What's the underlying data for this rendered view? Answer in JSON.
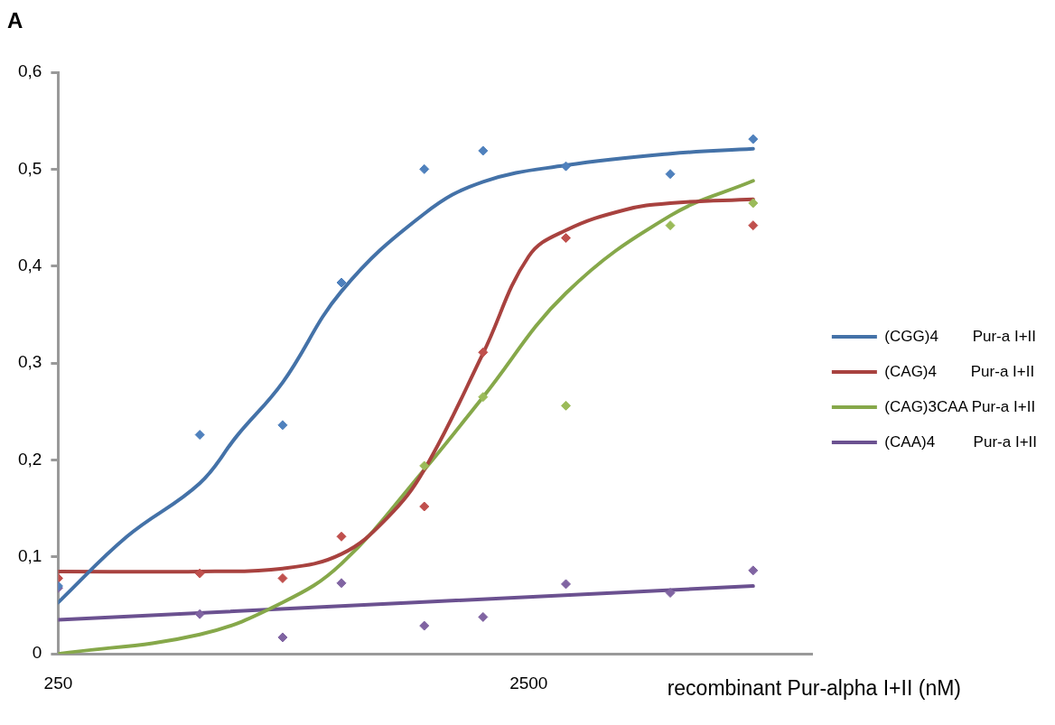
{
  "chart_data": {
    "type": "scatter",
    "xlabel": "recombinant Pur-alpha I+II (nM)",
    "annotations": [
      "A"
    ],
    "log": "x",
    "xlim": [
      250,
      10000
    ],
    "xticks": [
      250,
      2500
    ],
    "ylim": [
      0,
      0.6
    ],
    "yticks": [
      0,
      {
        "value": 0.1,
        "label": "0,1"
      },
      {
        "value": 0.2,
        "label": "0,2"
      },
      {
        "value": 0.3,
        "label": "0,3"
      },
      {
        "value": 0.4,
        "label": "0,4"
      },
      {
        "value": 0.5,
        "label": "0,5"
      },
      {
        "value": 0.6,
        "label": "0,6"
      }
    ],
    "grid": false,
    "legend": "right",
    "marker": "diamond",
    "x": [
      250,
      500,
      750,
      1000,
      1500,
      2000,
      3000,
      5000,
      7500
    ],
    "series": [
      {
        "type": "scatter",
        "color": "#4f81bd",
        "values": [
          0.07,
          0.226,
          0.236,
          0.383,
          0.5,
          0.519,
          0.503,
          0.495,
          0.531
        ]
      },
      {
        "type": "scatter",
        "color": "#c0504d",
        "values": [
          0.078,
          0.083,
          0.078,
          0.121,
          0.152,
          0.311,
          0.429,
          null,
          0.442
        ]
      },
      {
        "type": "scatter",
        "color": "#9bbb59",
        "values": [
          null,
          null,
          null,
          null,
          0.194,
          0.265,
          0.256,
          0.442,
          0.465
        ]
      },
      {
        "type": "scatter",
        "color": "#8064a2",
        "values": [
          0.068,
          0.041,
          0.017,
          0.073,
          0.029,
          0.038,
          0.072,
          0.063,
          0.086
        ]
      },
      {
        "type": "line",
        "name": "(CGG)4        Pur-a I+II",
        "color": "#4472a8",
        "marker": "none",
        "x": [
          250,
          350,
          500,
          600,
          750,
          1000,
          1500,
          2000,
          3000,
          5000,
          7500
        ],
        "values": [
          0.053,
          0.121,
          0.176,
          0.225,
          0.28,
          0.374,
          0.454,
          0.487,
          0.504,
          0.516,
          0.521
        ]
      },
      {
        "type": "line",
        "name": "(CAG)4        Pur-a I+II",
        "color": "#a8423f",
        "marker": "none",
        "x": [
          250,
          500,
          750,
          1000,
          1250,
          1500,
          2000,
          2500,
          3000,
          4000,
          5000,
          7500
        ],
        "values": [
          0.085,
          0.085,
          0.088,
          0.103,
          0.14,
          0.19,
          0.31,
          0.41,
          0.437,
          0.458,
          0.465,
          0.469
        ]
      },
      {
        "type": "line",
        "name": "(CAG)3CAA Pur-a I+II",
        "color": "#86a84a",
        "marker": "none",
        "x": [
          250,
          500,
          750,
          1000,
          1500,
          2000,
          3000,
          5000,
          7500
        ],
        "values": [
          0,
          0.02,
          0.053,
          0.093,
          0.19,
          0.265,
          0.372,
          0.452,
          0.488
        ]
      },
      {
        "type": "line",
        "name": "(CAA)4         Pur-a I+II",
        "color": "#6b5190",
        "marker": "none",
        "x": [
          250,
          7500
        ],
        "values": [
          0.035,
          0.07
        ]
      }
    ]
  }
}
